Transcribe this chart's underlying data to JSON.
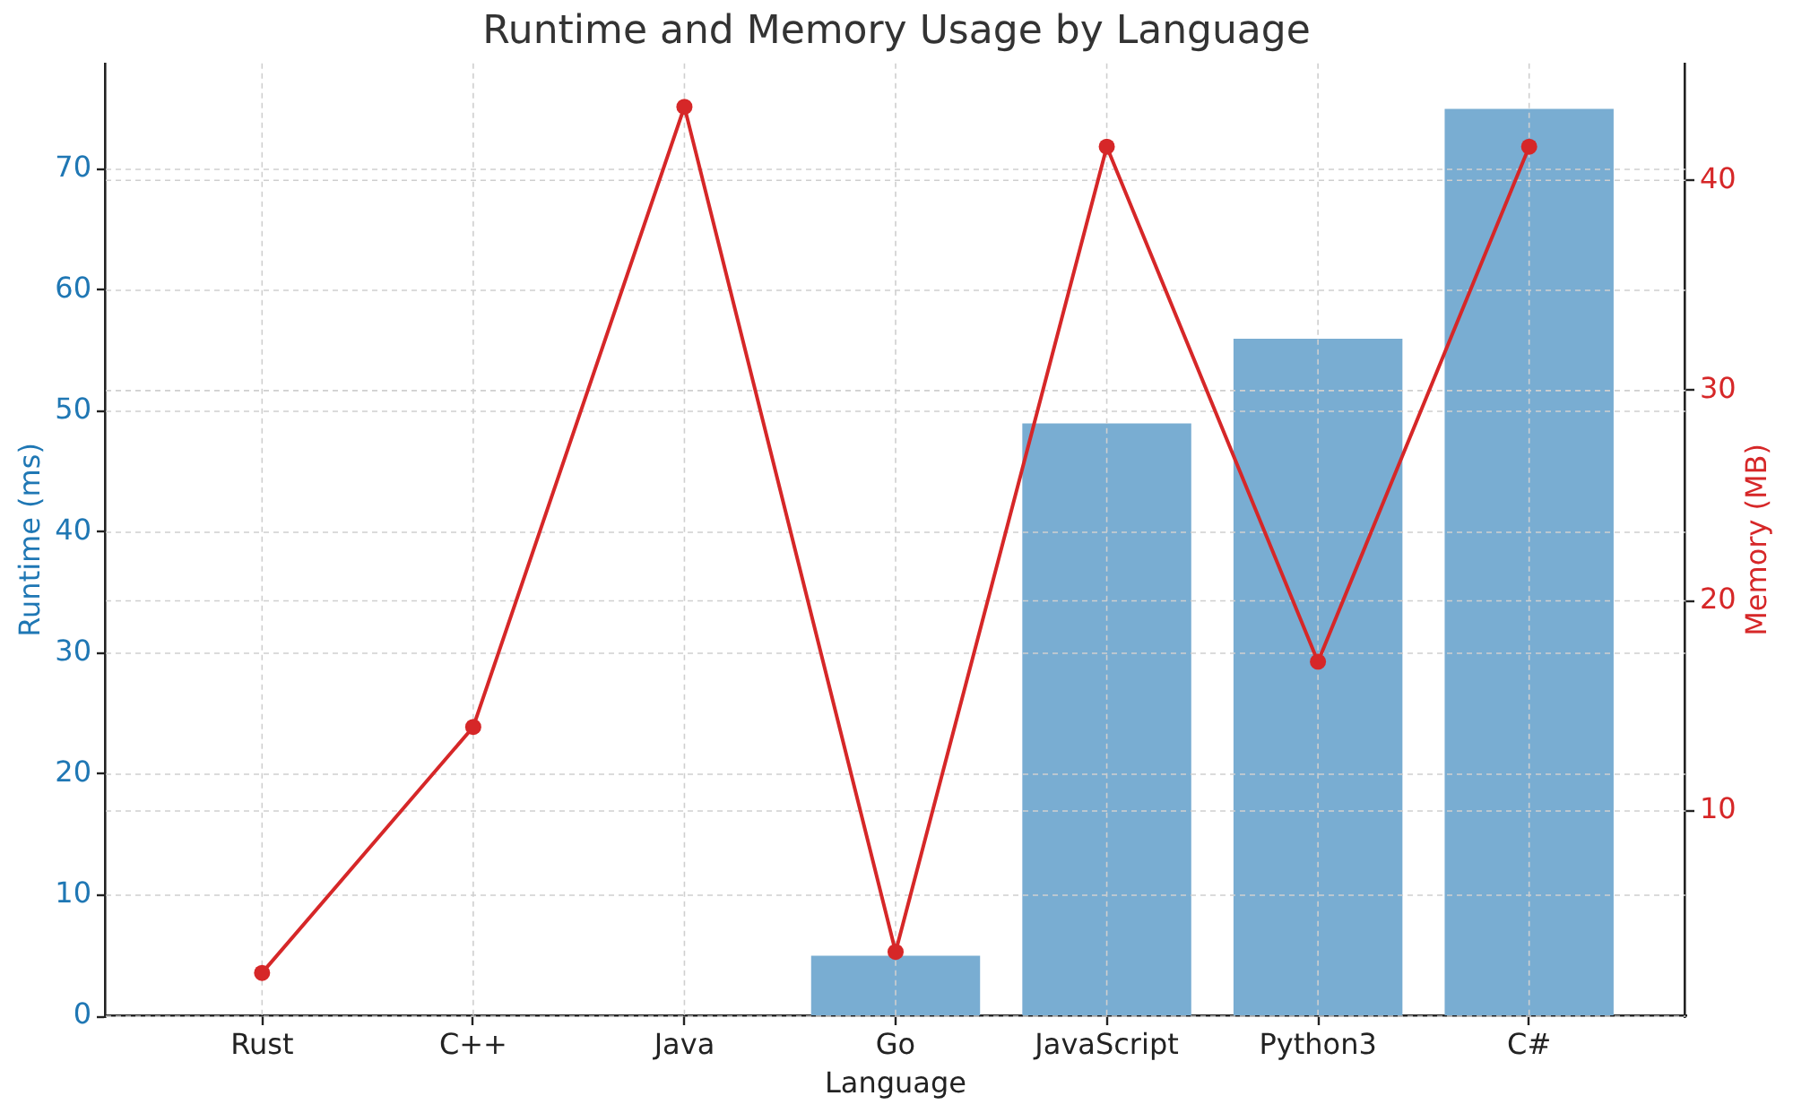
{
  "chart_data": {
    "type": "bar",
    "title": "Runtime and Memory Usage by Language",
    "xlabel": "Language",
    "ylabel": "Runtime (ms)",
    "y2label": "Memory (MB)",
    "categories": [
      "Rust",
      "C++",
      "Java",
      "Go",
      "JavaScript",
      "Python3",
      "C#"
    ],
    "series": [
      {
        "color": "#79add2",
        "values": [
          0,
          0,
          0,
          5,
          49,
          56,
          75
        ]
      },
      {
        "type": "line",
        "axis": "y2",
        "color": "#d62728",
        "values": [
          2.3,
          14,
          43.5,
          3.3,
          41.6,
          17.1,
          41.6
        ]
      }
    ],
    "ylim": [
      0,
      78.75
    ],
    "yticks": [
      0,
      10,
      20,
      30,
      40,
      50,
      60,
      70
    ],
    "y2lim": [
      0.24,
      45.56
    ],
    "y2ticks": [
      10,
      20,
      30,
      40
    ],
    "grid": true,
    "marker": "circle"
  }
}
